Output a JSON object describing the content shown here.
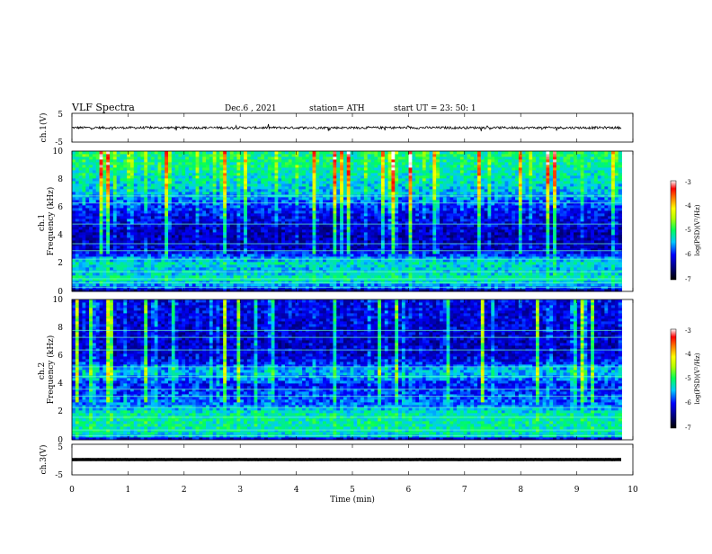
{
  "header": {
    "title": "VLF  Spectra",
    "date": "Dec.6   , 2021",
    "station": "station= ATH",
    "start": "start  UT  =    23: 50: 1"
  },
  "chart_data": [
    {
      "type": "line",
      "name": "ch1-waveform",
      "ylabel": "ch.1(V)",
      "ylim": [
        -5,
        5
      ],
      "yticks": [
        "5",
        "-5"
      ],
      "xlim": [
        0,
        10
      ],
      "x_end": 9.8,
      "level": 0,
      "noise": 0.4,
      "spikes": 0.25
    },
    {
      "type": "heatmap",
      "name": "ch1-spectrogram",
      "ylabel": "ch.1\nFrequency (kHz)",
      "ylim": [
        0,
        10
      ],
      "yticks": [
        "0",
        "2",
        "4",
        "6",
        "8",
        "10"
      ],
      "xlim": [
        0,
        10
      ],
      "x_end": 9.8,
      "zlim": [
        -7,
        -3
      ],
      "zlabel": "log(PSD)(V²/Hz)",
      "zticks": [
        "-3",
        "-4",
        "-5",
        "-6",
        "-7"
      ],
      "profile_freq_khz": [
        0,
        0.2,
        0.5,
        0.8,
        1.0,
        1.3,
        1.6,
        2.0,
        2.4,
        2.7,
        3.0,
        3.5,
        4.0,
        4.5,
        5.0,
        5.5,
        6.0,
        6.5,
        7.0,
        7.5,
        8.0,
        9.0,
        10.0
      ],
      "profile_log_psd": [
        -6.9,
        -5.9,
        -5.6,
        -5.3,
        -5.2,
        -5.4,
        -5.5,
        -5.3,
        -5.6,
        -6.0,
        -6.2,
        -6.3,
        -6.3,
        -6.25,
        -6.15,
        -6.1,
        -5.9,
        -5.7,
        -5.5,
        -5.4,
        -5.3,
        -5.15,
        -5.05
      ],
      "tones_khz": [
        0.3,
        0.6,
        0.9,
        1.4,
        2.3,
        2.9,
        3.4,
        4.8,
        6.3,
        6.8
      ],
      "sferics_per_min": 20
    },
    {
      "type": "heatmap",
      "name": "ch2-spectrogram",
      "ylabel": "ch.2\nFrequency (kHz)",
      "ylim": [
        0,
        10
      ],
      "yticks": [
        "0",
        "2",
        "4",
        "6",
        "8",
        "10"
      ],
      "xlim": [
        0,
        10
      ],
      "x_end": 9.8,
      "zlim": [
        -7,
        -3
      ],
      "zlabel": "log(PSD)(V²/Hz)",
      "zticks": [
        "-3",
        "-4",
        "-5",
        "-6",
        "-7"
      ],
      "profile_freq_khz": [
        0,
        0.2,
        0.5,
        1.0,
        1.5,
        2.0,
        2.5,
        3.0,
        3.5,
        4.0,
        4.5,
        5.0,
        5.5,
        6.0,
        7.0,
        8.0,
        9.0,
        10.0
      ],
      "profile_log_psd": [
        -6.8,
        -5.5,
        -5.3,
        -5.2,
        -5.2,
        -5.3,
        -5.7,
        -5.8,
        -5.9,
        -6.0,
        -5.6,
        -5.5,
        -6.0,
        -6.2,
        -6.25,
        -6.2,
        -6.15,
        -6.1
      ],
      "tones_khz": [
        0.3,
        0.7,
        1.6,
        2.3,
        3.1,
        3.6,
        4.5,
        5.2,
        6.4,
        7.3,
        7.8
      ],
      "sferics_per_min": 20
    },
    {
      "type": "line",
      "name": "ch3-waveform",
      "ylabel": "ch.3(V)",
      "ylim": [
        -5,
        5
      ],
      "yticks": [
        "5",
        "-5"
      ],
      "xlim": [
        0,
        10
      ],
      "x_end": 9.8,
      "level": 0,
      "noise": 0.02,
      "spikes": 0
    }
  ],
  "xaxis": {
    "label": "Time  (min)",
    "ticks": [
      "0",
      "1",
      "2",
      "3",
      "4",
      "5",
      "6",
      "7",
      "8",
      "9",
      "10"
    ]
  }
}
